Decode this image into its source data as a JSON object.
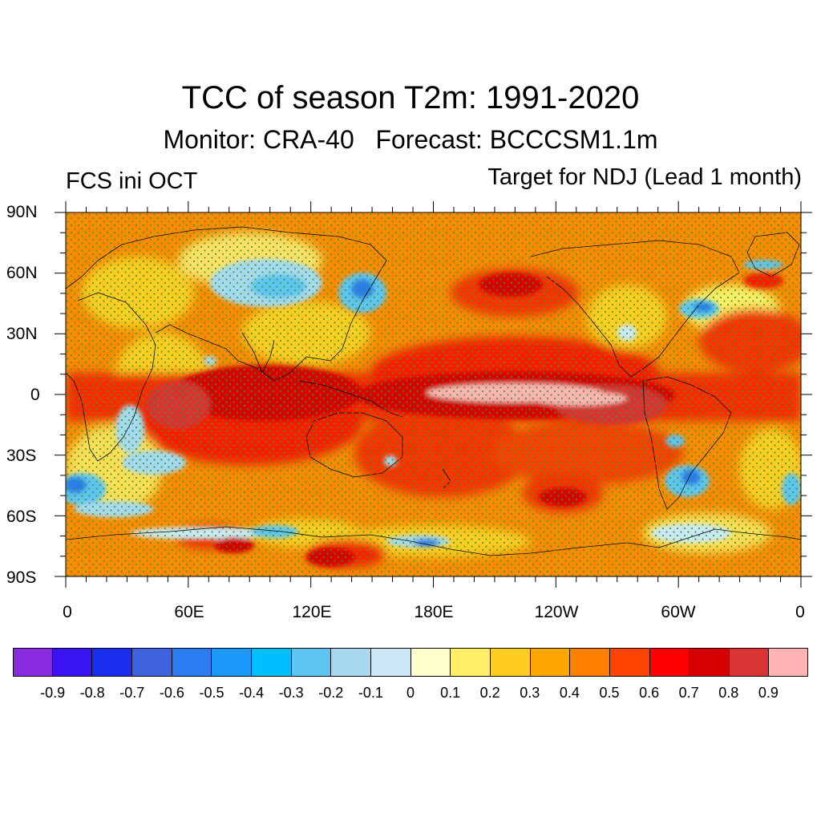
{
  "title": "TCC of season T2m: 1991-2020",
  "subtitle": "Monitor: CRA-40   Forecast: BCCCSM1.1m",
  "left_label": "FCS ini OCT",
  "right_label": "Target for NDJ (Lead 1 month)",
  "map": {
    "lat_labels": [
      "90N",
      "60N",
      "30N",
      "0",
      "30S",
      "60S",
      "90S"
    ],
    "lon_labels": [
      "0",
      "60E",
      "120E",
      "180E",
      "120W",
      "60W",
      "0"
    ],
    "projection": "cylindrical equidistant, 0 to 360 longitude",
    "significance_stipple_color": "#2aa02a"
  },
  "colorbar": {
    "colors": [
      "#8a2be2",
      "#3a14f5",
      "#1a2ef0",
      "#3f62dd",
      "#2a7cf0",
      "#1a98fb",
      "#00bfff",
      "#5ec4f2",
      "#a6d8f0",
      "#cce8f6",
      "#ffffcc",
      "#ffee66",
      "#ffcc22",
      "#ffa500",
      "#ff7f00",
      "#ff4500",
      "#ff0000",
      "#d70000",
      "#d93333",
      "#ffb3b3"
    ],
    "labels": [
      "-0.9",
      "-0.8",
      "-0.7",
      "-0.6",
      "-0.5",
      "-0.4",
      "-0.3",
      "-0.2",
      "-0.1",
      "0",
      "0.1",
      "0.2",
      "0.3",
      "0.4",
      "0.5",
      "0.6",
      "0.7",
      "0.8",
      "0.9"
    ]
  }
}
